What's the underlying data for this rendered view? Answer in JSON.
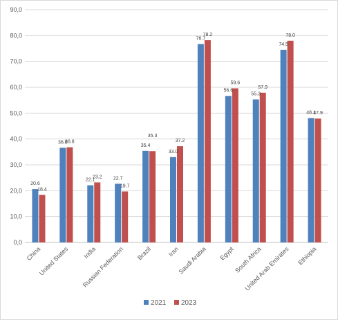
{
  "chart_data": {
    "type": "bar",
    "title": "",
    "xlabel": "",
    "ylabel": "",
    "ylim": [
      0,
      90
    ],
    "ytick_labels": [
      "0,0",
      "10,0",
      "20,0",
      "30,0",
      "40,0",
      "50,0",
      "60,0",
      "70,0",
      "80,0",
      "90,0"
    ],
    "grid": true,
    "legend_position": "bottom",
    "categories": [
      "China",
      "United States",
      "India",
      "Russian Federation",
      "Brazil",
      "Iran",
      "Saudi Arabia",
      "Egypt",
      "South Africa",
      "United Arab Emirates",
      "Ethiopia"
    ],
    "series": [
      {
        "name": "2021",
        "color": "#4f81bd",
        "values": [
          20.6,
          36.6,
          22.1,
          22.7,
          35.4,
          33.0,
          76.7,
          56.6,
          55.3,
          74.5,
          48.1
        ],
        "labels": [
          "20.6",
          "36.6",
          "22.1",
          "22.7",
          "35.4",
          "33.0",
          "76.7",
          "56.6",
          "55.3",
          "74.5",
          "48.1"
        ]
      },
      {
        "name": "2023",
        "color": "#c0504d",
        "values": [
          18.4,
          36.8,
          23.2,
          19.7,
          35.3,
          37.2,
          78.2,
          59.6,
          57.9,
          78.0,
          47.9
        ],
        "labels": [
          "18.4",
          "36.8",
          "23.2",
          "19.7",
          "35.3",
          "37.2",
          "78.2",
          "59.6",
          "57.9",
          "78.0",
          "47.9"
        ]
      }
    ]
  }
}
